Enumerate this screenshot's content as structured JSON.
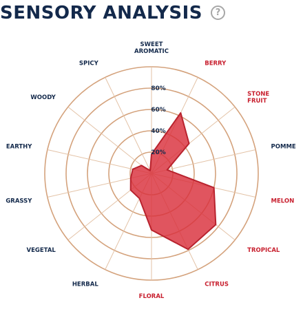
{
  "header": {
    "title": "SENSORY ANALYSIS",
    "help_icon_glyph": "?"
  },
  "colors": {
    "title": "#13294b",
    "label_default": "#13294b",
    "label_highlight": "#c8202f",
    "ring": "#d4a27c",
    "area_fill": "#d9303c",
    "area_stroke": "#b8232e"
  },
  "chart_data": {
    "type": "radar",
    "title": "SENSORY ANALYSIS",
    "rmax": 100,
    "ring_values": [
      20,
      40,
      60,
      80,
      100
    ],
    "tick_labels": [
      "20%",
      "40%",
      "60%",
      "80%"
    ],
    "axes": [
      {
        "label": [
          "SWEET",
          "AROMATIC"
        ],
        "value": 18,
        "highlight": false
      },
      {
        "label": [
          "BERRY"
        ],
        "value": 63,
        "highlight": true
      },
      {
        "label": [
          "STONE",
          "FRUIT"
        ],
        "value": 45,
        "highlight": true
      },
      {
        "label": [
          "POMME"
        ],
        "value": 15,
        "highlight": false
      },
      {
        "label": [
          "MELON"
        ],
        "value": 60,
        "highlight": true
      },
      {
        "label": [
          "TROPICAL"
        ],
        "value": 77,
        "highlight": true
      },
      {
        "label": [
          "CITRUS"
        ],
        "value": 79,
        "highlight": true
      },
      {
        "label": [
          "FLORAL"
        ],
        "value": 53,
        "highlight": true
      },
      {
        "label": [
          "HERBAL"
        ],
        "value": 26,
        "highlight": false
      },
      {
        "label": [
          "VEGETAL"
        ],
        "value": 25,
        "highlight": false
      },
      {
        "label": [
          "GRASSY"
        ],
        "value": 20,
        "highlight": false
      },
      {
        "label": [
          "EARTHY"
        ],
        "value": 18,
        "highlight": false
      },
      {
        "label": [
          "WOODY"
        ],
        "value": 12,
        "highlight": false
      },
      {
        "label": [
          "SPICY"
        ],
        "value": 3,
        "highlight": false
      }
    ]
  }
}
